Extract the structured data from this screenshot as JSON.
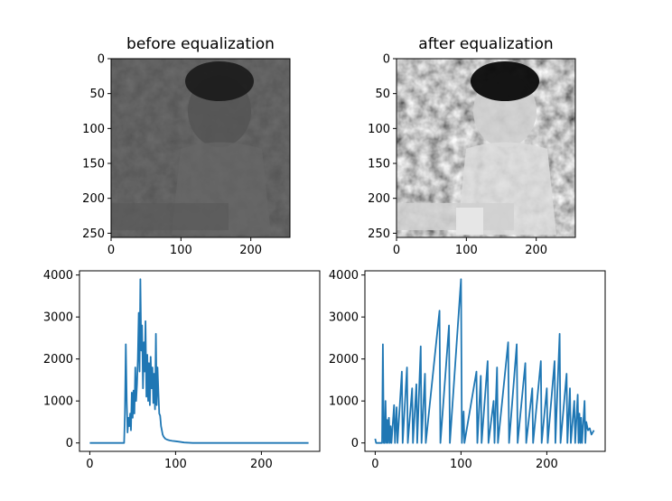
{
  "panels": {
    "before_image": {
      "title": "before equalization"
    },
    "after_image": {
      "title": "after equalization"
    }
  },
  "image_axes": {
    "x_ticks": [
      0,
      100,
      200
    ],
    "y_ticks": [
      0,
      50,
      100,
      150,
      200,
      250
    ],
    "xlim": [
      0,
      256
    ],
    "ylim": [
      256,
      0
    ]
  },
  "chart_data": [
    {
      "type": "line",
      "title": "",
      "xlabel": "",
      "ylabel": "",
      "xlim": [
        -12,
        268
      ],
      "ylim": [
        -200,
        4100
      ],
      "x_ticks": [
        0,
        100,
        200
      ],
      "y_ticks": [
        0,
        1000,
        2000,
        3000,
        4000
      ],
      "color": "#1f77b4",
      "points": [
        [
          0,
          0
        ],
        [
          10,
          0
        ],
        [
          20,
          0
        ],
        [
          30,
          0
        ],
        [
          38,
          0
        ],
        [
          40,
          0
        ],
        [
          41,
          700
        ],
        [
          42,
          2350
        ],
        [
          43,
          1000
        ],
        [
          44,
          250
        ],
        [
          45,
          600
        ],
        [
          46,
          400
        ],
        [
          47,
          700
        ],
        [
          48,
          300
        ],
        [
          49,
          1200
        ],
        [
          50,
          600
        ],
        [
          51,
          1250
        ],
        [
          52,
          700
        ],
        [
          53,
          1800
        ],
        [
          54,
          1000
        ],
        [
          55,
          1400
        ],
        [
          56,
          2000
        ],
        [
          57,
          3100
        ],
        [
          58,
          1700
        ],
        [
          59,
          3900
        ],
        [
          60,
          2200
        ],
        [
          61,
          2800
        ],
        [
          62,
          1300
        ],
        [
          63,
          2400
        ],
        [
          64,
          1700
        ],
        [
          65,
          2900
        ],
        [
          66,
          1100
        ],
        [
          67,
          2100
        ],
        [
          68,
          1000
        ],
        [
          69,
          1900
        ],
        [
          70,
          900
        ],
        [
          71,
          2050
        ],
        [
          72,
          1300
        ],
        [
          73,
          1800
        ],
        [
          74,
          950
        ],
        [
          75,
          1650
        ],
        [
          76,
          800
        ],
        [
          77,
          2600
        ],
        [
          78,
          900
        ],
        [
          79,
          1800
        ],
        [
          80,
          1200
        ],
        [
          81,
          700
        ],
        [
          82,
          650
        ],
        [
          83,
          400
        ],
        [
          84,
          300
        ],
        [
          85,
          200
        ],
        [
          86,
          150
        ],
        [
          88,
          100
        ],
        [
          90,
          80
        ],
        [
          93,
          60
        ],
        [
          96,
          50
        ],
        [
          100,
          40
        ],
        [
          104,
          30
        ],
        [
          110,
          10
        ],
        [
          120,
          0
        ],
        [
          150,
          0
        ],
        [
          200,
          0
        ],
        [
          255,
          0
        ]
      ]
    },
    {
      "type": "line",
      "title": "",
      "xlabel": "",
      "ylabel": "",
      "xlim": [
        -12,
        268
      ],
      "ylim": [
        -200,
        4100
      ],
      "x_ticks": [
        0,
        100,
        200
      ],
      "y_ticks": [
        0,
        1000,
        2000,
        3000,
        4000
      ],
      "color": "#1f77b4",
      "points": [
        [
          0,
          100
        ],
        [
          1,
          0
        ],
        [
          5,
          0
        ],
        [
          8,
          0
        ],
        [
          9,
          2350
        ],
        [
          10,
          0
        ],
        [
          11,
          0
        ],
        [
          12,
          1000
        ],
        [
          13,
          0
        ],
        [
          14,
          550
        ],
        [
          15,
          0
        ],
        [
          16,
          600
        ],
        [
          17,
          0
        ],
        [
          18,
          400
        ],
        [
          19,
          0
        ],
        [
          22,
          900
        ],
        [
          23,
          0
        ],
        [
          25,
          850
        ],
        [
          26,
          0
        ],
        [
          31,
          1700
        ],
        [
          32,
          0
        ],
        [
          37,
          1800
        ],
        [
          38,
          0
        ],
        [
          43,
          1300
        ],
        [
          44,
          0
        ],
        [
          48,
          1400
        ],
        [
          49,
          0
        ],
        [
          53,
          2300
        ],
        [
          54,
          0
        ],
        [
          58,
          1650
        ],
        [
          59,
          0
        ],
        [
          75,
          3150
        ],
        [
          76,
          0
        ],
        [
          86,
          2800
        ],
        [
          87,
          0
        ],
        [
          100,
          3900
        ],
        [
          101,
          0
        ],
        [
          103,
          750
        ],
        [
          104,
          0
        ],
        [
          118,
          1700
        ],
        [
          119,
          0
        ],
        [
          123,
          1600
        ],
        [
          124,
          0
        ],
        [
          131,
          1950
        ],
        [
          132,
          0
        ],
        [
          138,
          1000
        ],
        [
          139,
          0
        ],
        [
          142,
          1800
        ],
        [
          143,
          0
        ],
        [
          155,
          2400
        ],
        [
          156,
          0
        ],
        [
          165,
          2350
        ],
        [
          166,
          0
        ],
        [
          175,
          1900
        ],
        [
          176,
          0
        ],
        [
          183,
          1300
        ],
        [
          184,
          0
        ],
        [
          193,
          1950
        ],
        [
          194,
          0
        ],
        [
          200,
          1300
        ],
        [
          201,
          0
        ],
        [
          209,
          1950
        ],
        [
          210,
          0
        ],
        [
          215,
          2600
        ],
        [
          216,
          0
        ],
        [
          223,
          1650
        ],
        [
          224,
          0
        ],
        [
          227,
          1300
        ],
        [
          228,
          0
        ],
        [
          232,
          1000
        ],
        [
          233,
          0
        ],
        [
          236,
          1150
        ],
        [
          237,
          0
        ],
        [
          238,
          700
        ],
        [
          239,
          0
        ],
        [
          240,
          600
        ],
        [
          241,
          0
        ],
        [
          244,
          1000
        ],
        [
          245,
          0
        ],
        [
          246,
          500
        ],
        [
          248,
          300
        ],
        [
          250,
          350
        ],
        [
          252,
          200
        ],
        [
          255,
          300
        ]
      ]
    }
  ]
}
